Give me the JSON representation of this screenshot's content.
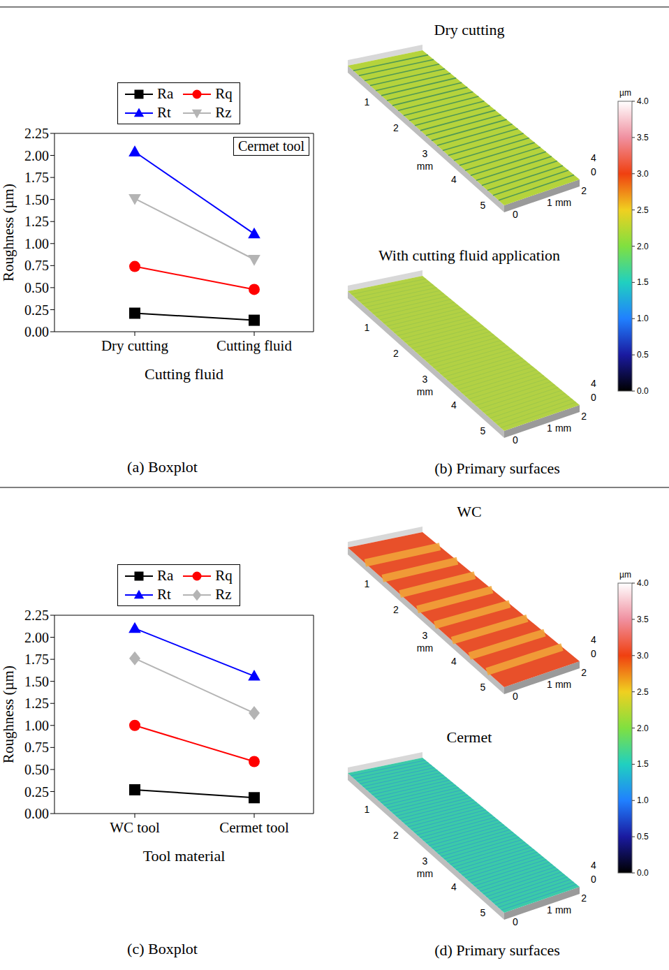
{
  "chart_data": [
    {
      "type": "line",
      "caption": "(a) Boxplot",
      "annotation": "Cermet tool",
      "categories": [
        "Dry cutting",
        "Cutting fluid"
      ],
      "x_label": "Cutting fluid",
      "y_label": "Roughness (µm)",
      "ylim": [
        0,
        2.25
      ],
      "yticks": [
        {
          "value": 0,
          "label": "0.00"
        },
        {
          "value": 0.25,
          "label": "0.25"
        },
        {
          "value": 0.5,
          "label": "0.50"
        },
        {
          "value": 0.75,
          "label": "0.75"
        },
        {
          "value": 1,
          "label": "1.00"
        },
        {
          "value": 1.25,
          "label": "1.25"
        },
        {
          "value": 1.5,
          "label": "1.50"
        },
        {
          "value": 1.75,
          "label": "1.75"
        },
        {
          "value": 2,
          "label": "2.00"
        },
        {
          "value": 2.25,
          "label": "2.25"
        }
      ],
      "legend": "top",
      "series": [
        {
          "name": "Ra",
          "color": "#000000",
          "marker": "square",
          "values": [
            0.21,
            0.13
          ]
        },
        {
          "name": "Rq",
          "color": "#ff0000",
          "marker": "circle",
          "values": [
            0.74,
            0.48
          ]
        },
        {
          "name": "Rt",
          "color": "#0000ff",
          "marker": "triangle",
          "values": [
            2.04,
            1.11
          ]
        },
        {
          "name": "Rz",
          "color": "#b4b4b4",
          "marker": "triangle-down",
          "values": [
            1.51,
            0.82
          ]
        }
      ]
    },
    {
      "type": "line",
      "caption": "(c) Boxplot",
      "categories": [
        "WC tool",
        "Cermet tool"
      ],
      "x_label": "Tool material",
      "y_label": "Roughness (µm)",
      "ylim": [
        0,
        2.25
      ],
      "yticks": [
        {
          "value": 0,
          "label": "0.00"
        },
        {
          "value": 0.25,
          "label": "0.25"
        },
        {
          "value": 0.5,
          "label": "0.50"
        },
        {
          "value": 0.75,
          "label": "0.75"
        },
        {
          "value": 1,
          "label": "1.00"
        },
        {
          "value": 1.25,
          "label": "1.25"
        },
        {
          "value": 1.5,
          "label": "1.50"
        },
        {
          "value": 1.75,
          "label": "1.75"
        },
        {
          "value": 2,
          "label": "2.00"
        },
        {
          "value": 2.25,
          "label": "2.25"
        }
      ],
      "legend": "top",
      "series": [
        {
          "name": "Ra",
          "color": "#000000",
          "marker": "square",
          "values": [
            0.27,
            0.18
          ]
        },
        {
          "name": "Rq",
          "color": "#ff0000",
          "marker": "circle",
          "values": [
            1.0,
            0.59
          ]
        },
        {
          "name": "Rt",
          "color": "#0000ff",
          "marker": "triangle",
          "values": [
            2.1,
            1.56
          ]
        },
        {
          "name": "Rz",
          "color": "#b4b4b4",
          "marker": "diamond",
          "values": [
            1.76,
            1.14
          ]
        }
      ]
    }
  ],
  "surface_panels": [
    {
      "caption": "(b) Primary surfaces",
      "surfaces": [
        {
          "title": "Dry cutting",
          "colors": [
            "#b5d33c",
            "#3f8f5a"
          ],
          "xlim": [
            0,
            5.4
          ],
          "x_ticks": [
            1,
            2,
            3,
            4,
            5
          ],
          "x_unit": "mm",
          "ylim": [
            0,
            2.2
          ],
          "y_ticks": [
            0,
            1,
            2
          ],
          "y_unit": "mm",
          "zlim": [
            0,
            4
          ],
          "z_ticks": [
            0,
            4
          ]
        },
        {
          "title": "With cutting fluid application",
          "colors": [
            "#b2d144",
            "#8fbf50"
          ],
          "xlim": [
            0,
            5.4
          ],
          "x_ticks": [
            1,
            2,
            3,
            4,
            5
          ],
          "x_unit": "mm",
          "ylim": [
            0,
            2.2
          ],
          "y_ticks": [
            0,
            1,
            2
          ],
          "y_unit": "mm",
          "zlim": [
            0,
            4
          ],
          "z_ticks": [
            0,
            4
          ]
        }
      ],
      "color_bar": {
        "unit": "µm",
        "range": [
          0,
          4
        ],
        "ticks": [
          {
            "value": 0,
            "label": "0.0"
          },
          {
            "value": 0.5,
            "label": "0.5"
          },
          {
            "value": 1,
            "label": "1.0"
          },
          {
            "value": 1.5,
            "label": "1.5"
          },
          {
            "value": 2,
            "label": "2.0"
          },
          {
            "value": 2.5,
            "label": "2.5"
          },
          {
            "value": 3,
            "label": "3.0"
          },
          {
            "value": 3.5,
            "label": "3.5"
          },
          {
            "value": 4,
            "label": "4.0"
          }
        ],
        "colors": [
          "#000000",
          "#1a1aa0",
          "#2080ff",
          "#20d0c0",
          "#80e040",
          "#f0d020",
          "#f04010",
          "#f090a0",
          "#ffffff"
        ]
      }
    },
    {
      "caption": "(d) Primary surfaces",
      "surfaces": [
        {
          "title": "WC",
          "colors": [
            "#e8502a",
            "#f2a83a"
          ],
          "xlim": [
            0,
            5.4
          ],
          "x_ticks": [
            1,
            2,
            3,
            4,
            5
          ],
          "x_unit": "mm",
          "ylim": [
            0,
            2.2
          ],
          "y_ticks": [
            0,
            1,
            2
          ],
          "y_unit": "mm",
          "zlim": [
            0,
            4
          ],
          "z_ticks": [
            0,
            4
          ]
        },
        {
          "title": "Cermet",
          "colors": [
            "#3ccaa8",
            "#2f8fd8"
          ],
          "xlim": [
            0,
            5.4
          ],
          "x_ticks": [
            1,
            2,
            3,
            4,
            5
          ],
          "x_unit": "mm",
          "ylim": [
            0,
            2.2
          ],
          "y_ticks": [
            0,
            1,
            2
          ],
          "y_unit": "mm",
          "zlim": [
            0,
            4
          ],
          "z_ticks": [
            0,
            4
          ]
        }
      ],
      "color_bar": {
        "unit": "µm",
        "range": [
          0,
          4
        ],
        "ticks": [
          {
            "value": 0,
            "label": "0.0"
          },
          {
            "value": 0.5,
            "label": "0.5"
          },
          {
            "value": 1,
            "label": "1.0"
          },
          {
            "value": 1.5,
            "label": "1.5"
          },
          {
            "value": 2,
            "label": "2.0"
          },
          {
            "value": 2.5,
            "label": "2.5"
          },
          {
            "value": 3,
            "label": "3.0"
          },
          {
            "value": 3.5,
            "label": "3.5"
          },
          {
            "value": 4,
            "label": "4.0"
          }
        ],
        "colors": [
          "#000000",
          "#1a1aa0",
          "#2080ff",
          "#20d0c0",
          "#80e040",
          "#f0d020",
          "#f04010",
          "#f090a0",
          "#ffffff"
        ]
      }
    }
  ]
}
